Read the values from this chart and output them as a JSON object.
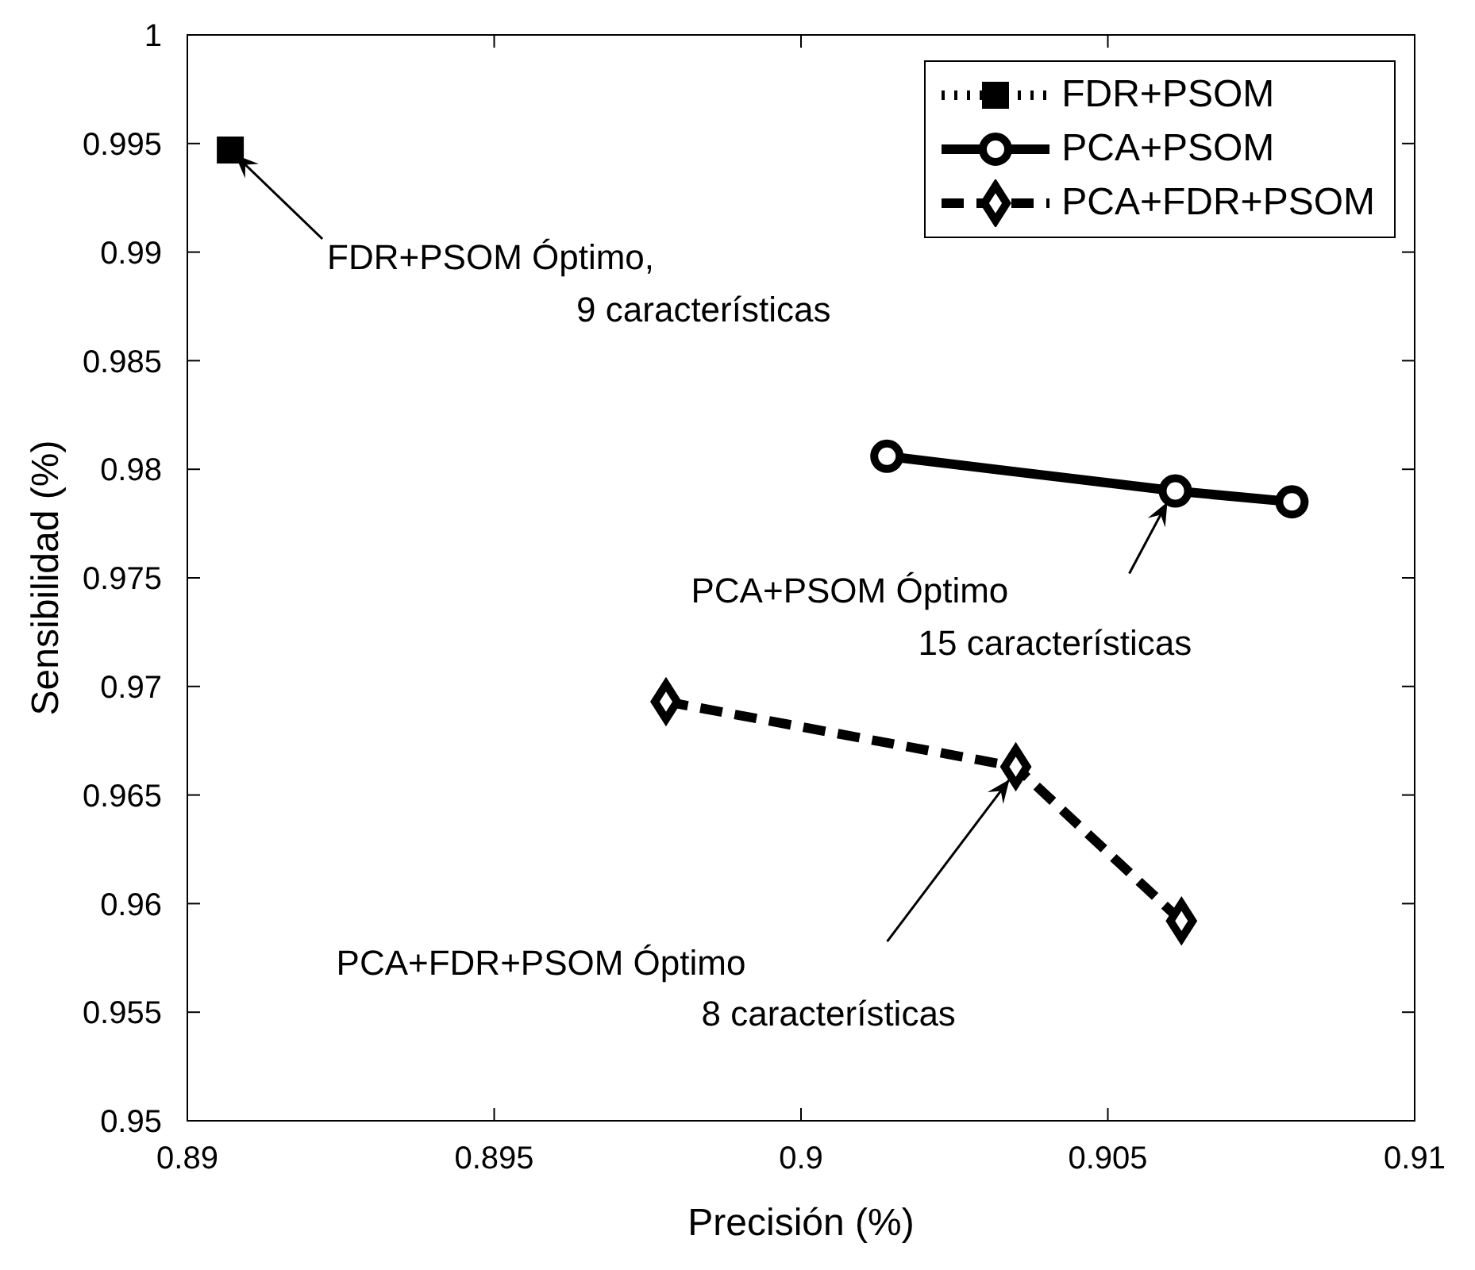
{
  "chart_data": {
    "type": "line",
    "xlabel": "Precisión (%)",
    "ylabel": "Sensibilidad (%)",
    "xlim": [
      0.89,
      0.91
    ],
    "xticks": [
      0.89,
      0.895,
      0.9,
      0.905,
      0.91
    ],
    "ylim": [
      0.95,
      1
    ],
    "yticks": [
      0.95,
      0.955,
      0.96,
      0.965,
      0.97,
      0.975,
      0.98,
      0.985,
      0.99,
      0.995,
      1
    ],
    "legend": "top right",
    "series": [
      {
        "name": "FDR+PSOM",
        "color": "#000000",
        "x": [
          0.8907
        ],
        "values": [
          0.9947
        ],
        "marker": "square",
        "line_style": "dotted"
      },
      {
        "name": "PCA+PSOM",
        "color": "#000000",
        "x": [
          0.9014,
          0.9061,
          0.908
        ],
        "values": [
          0.9806,
          0.979,
          0.9785
        ],
        "marker": "circle",
        "line_style": "solid"
      },
      {
        "name": "PCA+FDR+PSOM",
        "color": "#000000",
        "x": [
          0.8978,
          0.9035,
          0.9062
        ],
        "values": [
          0.9693,
          0.9663,
          0.9592
        ],
        "marker": "diamond",
        "line_style": "dashed"
      }
    ],
    "annotations": [
      {
        "text": "FDR+PSOM Óptimo,\n9 características",
        "x": 0.8907,
        "y": 0.9947
      },
      {
        "text": "PCA+PSOM Óptimo\n15 características",
        "x": 0.9061,
        "y": 0.979
      },
      {
        "text": "PCA+FDR+PSOM Óptimo\n8 características",
        "x": 0.9035,
        "y": 0.9663
      }
    ]
  }
}
